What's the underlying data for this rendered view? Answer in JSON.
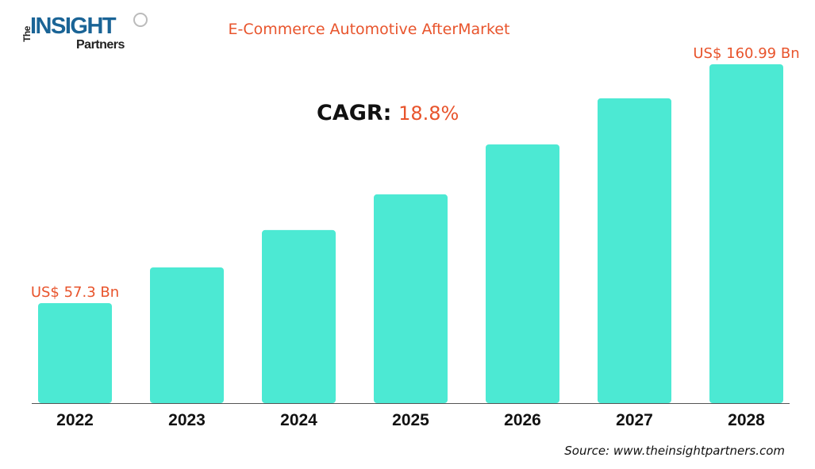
{
  "logo": {
    "text": "The INSIGHT Partners"
  },
  "chart_data": {
    "type": "bar",
    "title": "E-Commerce Automotive AfterMarket",
    "categories": [
      "2022",
      "2023",
      "2024",
      "2025",
      "2026",
      "2027",
      "2028"
    ],
    "values": [
      57.3,
      72.8,
      89.0,
      104.5,
      126.2,
      146.2,
      160.99
    ],
    "unit": "US$ Bn",
    "data_labels": {
      "2022": "US$ 57.3 Bn",
      "2028": "US$ 160.99 Bn"
    },
    "cagr_label": "CAGR:",
    "cagr_value": "18.8%",
    "grid": false,
    "bar_color": "#4ce9d3",
    "label_color": "#e8542c"
  },
  "source": "Source: www.theinsightpartners.com"
}
